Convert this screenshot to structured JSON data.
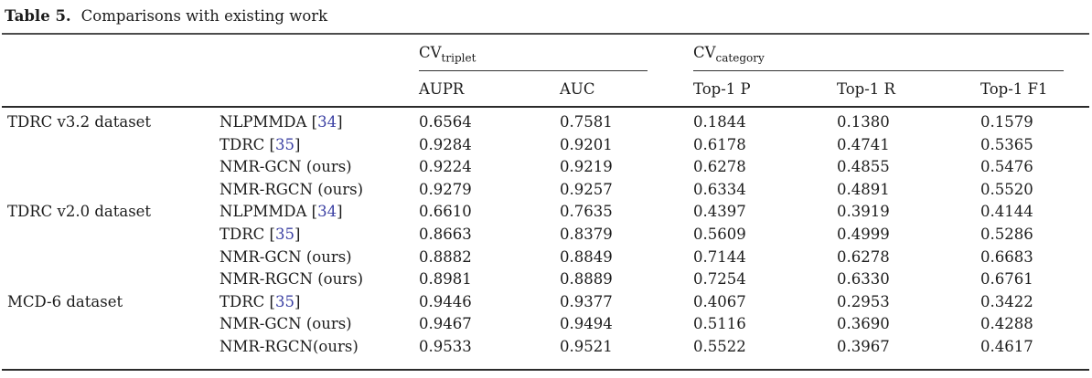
{
  "caption": {
    "label": "Table 5.",
    "text": "Comparisons with existing work"
  },
  "header": {
    "group1": {
      "base": "CV",
      "sub": "triplet"
    },
    "group2": {
      "base": "CV",
      "sub": "category"
    },
    "columns": [
      "AUPR",
      "AUC",
      "Top-1 P",
      "Top-1 R",
      "Top-1 F1"
    ]
  },
  "groups": [
    {
      "dataset": "TDRC v3.2 dataset",
      "rows": [
        {
          "method": "NLPMMDA",
          "cite": "34",
          "values": [
            "0.6564",
            "0.7581",
            "0.1844",
            "0.1380",
            "0.1579"
          ]
        },
        {
          "method": "TDRC",
          "cite": "35",
          "values": [
            "0.9284",
            "0.9201",
            "0.6178",
            "0.4741",
            "0.5365"
          ]
        },
        {
          "method": "NMR-GCN (ours)",
          "cite": null,
          "values": [
            "0.9224",
            "0.9219",
            "0.6278",
            "0.4855",
            "0.5476"
          ]
        },
        {
          "method": "NMR-RGCN (ours)",
          "cite": null,
          "values": [
            "0.9279",
            "0.9257",
            "0.6334",
            "0.4891",
            "0.5520"
          ]
        }
      ]
    },
    {
      "dataset": "TDRC v2.0 dataset",
      "rows": [
        {
          "method": "NLPMMDA",
          "cite": "34",
          "values": [
            "0.6610",
            "0.7635",
            "0.4397",
            "0.3919",
            "0.4144"
          ]
        },
        {
          "method": "TDRC",
          "cite": "35",
          "values": [
            "0.8663",
            "0.8379",
            "0.5609",
            "0.4999",
            "0.5286"
          ]
        },
        {
          "method": "NMR-GCN (ours)",
          "cite": null,
          "values": [
            "0.8882",
            "0.8849",
            "0.7144",
            "0.6278",
            "0.6683"
          ]
        },
        {
          "method": "NMR-RGCN (ours)",
          "cite": null,
          "values": [
            "0.8981",
            "0.8889",
            "0.7254",
            "0.6330",
            "0.6761"
          ]
        }
      ]
    },
    {
      "dataset": "MCD-6 dataset",
      "rows": [
        {
          "method": "TDRC",
          "cite": "35",
          "values": [
            "0.9446",
            "0.9377",
            "0.4067",
            "0.2953",
            "0.3422"
          ]
        },
        {
          "method": "NMR-GCN (ours)",
          "cite": null,
          "values": [
            "0.9467",
            "0.9494",
            "0.5116",
            "0.3690",
            "0.4288"
          ]
        },
        {
          "method": "NMR-RGCN(ours)",
          "cite": null,
          "values": [
            "0.9533",
            "0.9521",
            "0.5522",
            "0.3967",
            "0.4617"
          ]
        }
      ]
    }
  ],
  "colors": {
    "text": "#1c1c1c",
    "citation": "#3c41a3",
    "rule_heavy": "#2b2b2b",
    "rule_light": "#4d4d4d",
    "background": "#ffffff"
  }
}
